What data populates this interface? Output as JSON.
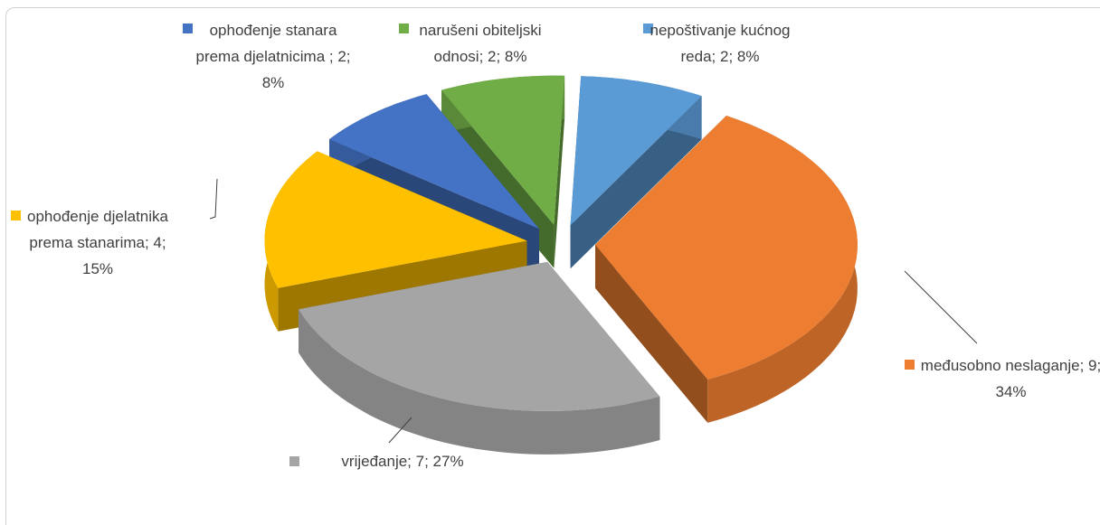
{
  "chart_data": {
    "type": "pie",
    "values": [
      9,
      7,
      4,
      2,
      2,
      2
    ],
    "value_labels": [
      "međusobno neslaganje; 9; 34%",
      "vrijeđanje; 7; 27%",
      "ophođenje djelatnika prema stanarima; 4; 15%",
      "ophođenje stanara prema djelatnicima ; 2; 8%",
      "narušeni obiteljski odnosi; 2; 8%",
      "nepoštivanje kućnog reda; 2; 8%"
    ],
    "colors": [
      "#ed7d31",
      "#a5a5a5",
      "#ffc000",
      "#4472c4",
      "#70ad47",
      "#5b9bd5"
    ],
    "three_d": true,
    "exploded": true
  }
}
